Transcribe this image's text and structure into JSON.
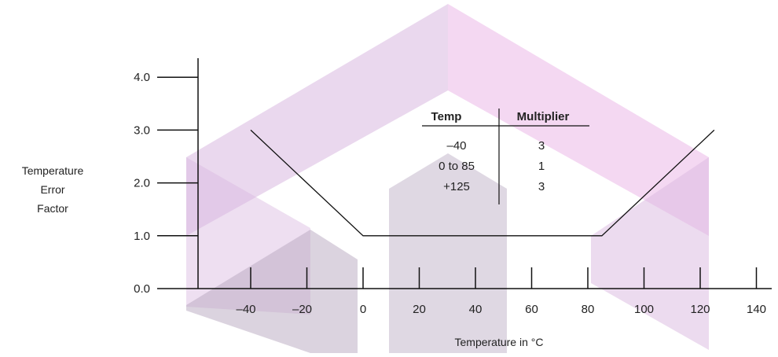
{
  "chart_data": {
    "type": "line",
    "title": "",
    "xlabel": "Temperature in °C",
    "ylabel": "Temperature Error Factor",
    "ylabel_lines": [
      "Temperature",
      "Error",
      "Factor"
    ],
    "xlim": [
      -55,
      140
    ],
    "ylim": [
      0,
      4
    ],
    "x_ticks": [
      -40,
      -20,
      0,
      20,
      40,
      60,
      80,
      100,
      120,
      140
    ],
    "x_tick_labels": [
      "–40",
      "–20",
      "0",
      "20",
      "40",
      "60",
      "80",
      "100",
      "120",
      "140"
    ],
    "y_ticks": [
      0,
      1,
      2,
      3,
      4
    ],
    "y_tick_labels": [
      "0.0",
      "1.0",
      "2.0",
      "3.0",
      "4.0"
    ],
    "grid": false,
    "series": [
      {
        "x": [
          -40,
          0,
          85,
          125
        ],
        "y": [
          3,
          1,
          1,
          3
        ]
      }
    ],
    "inset_table": {
      "headers": [
        "Temp",
        "Multiplier"
      ],
      "rows": [
        [
          "–40",
          "3"
        ],
        [
          "0 to 85",
          "1"
        ],
        [
          "+125",
          "3"
        ]
      ]
    },
    "watermark_colors": [
      "#d9b8e0",
      "#efc8ec",
      "#b8a8c0"
    ]
  }
}
